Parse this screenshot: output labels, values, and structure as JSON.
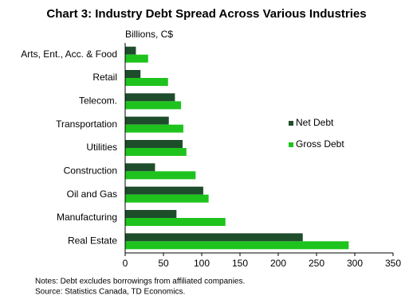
{
  "chart_data": {
    "type": "hbar",
    "title": "Chart 3: Industry Debt Spread Across Various Industries",
    "unit_label": "Billions, C$",
    "categories": [
      "Arts, Ent., Acc. & Food",
      "Retail",
      "Telecom.",
      "Transportation",
      "Utilities",
      "Construction",
      "Oil and Gas",
      "Manufacturing",
      "Real Estate"
    ],
    "series": [
      {
        "name": "Net Debt",
        "color": "#1e4d2b",
        "values": [
          14,
          20,
          65,
          57,
          75,
          39,
          102,
          67,
          232
        ]
      },
      {
        "name": "Gross Debt",
        "color": "#1ec31e",
        "values": [
          30,
          56,
          73,
          76,
          80,
          92,
          109,
          131,
          292
        ]
      }
    ],
    "xlim": [
      0,
      350
    ],
    "xticks": [
      0,
      50,
      100,
      150,
      200,
      250,
      300,
      350
    ],
    "legend": "right",
    "grid": false,
    "notes": [
      "Notes: Debt excludes borrowings from affiliated companies.",
      "Source: Statistics Canada, TD Economics."
    ]
  }
}
